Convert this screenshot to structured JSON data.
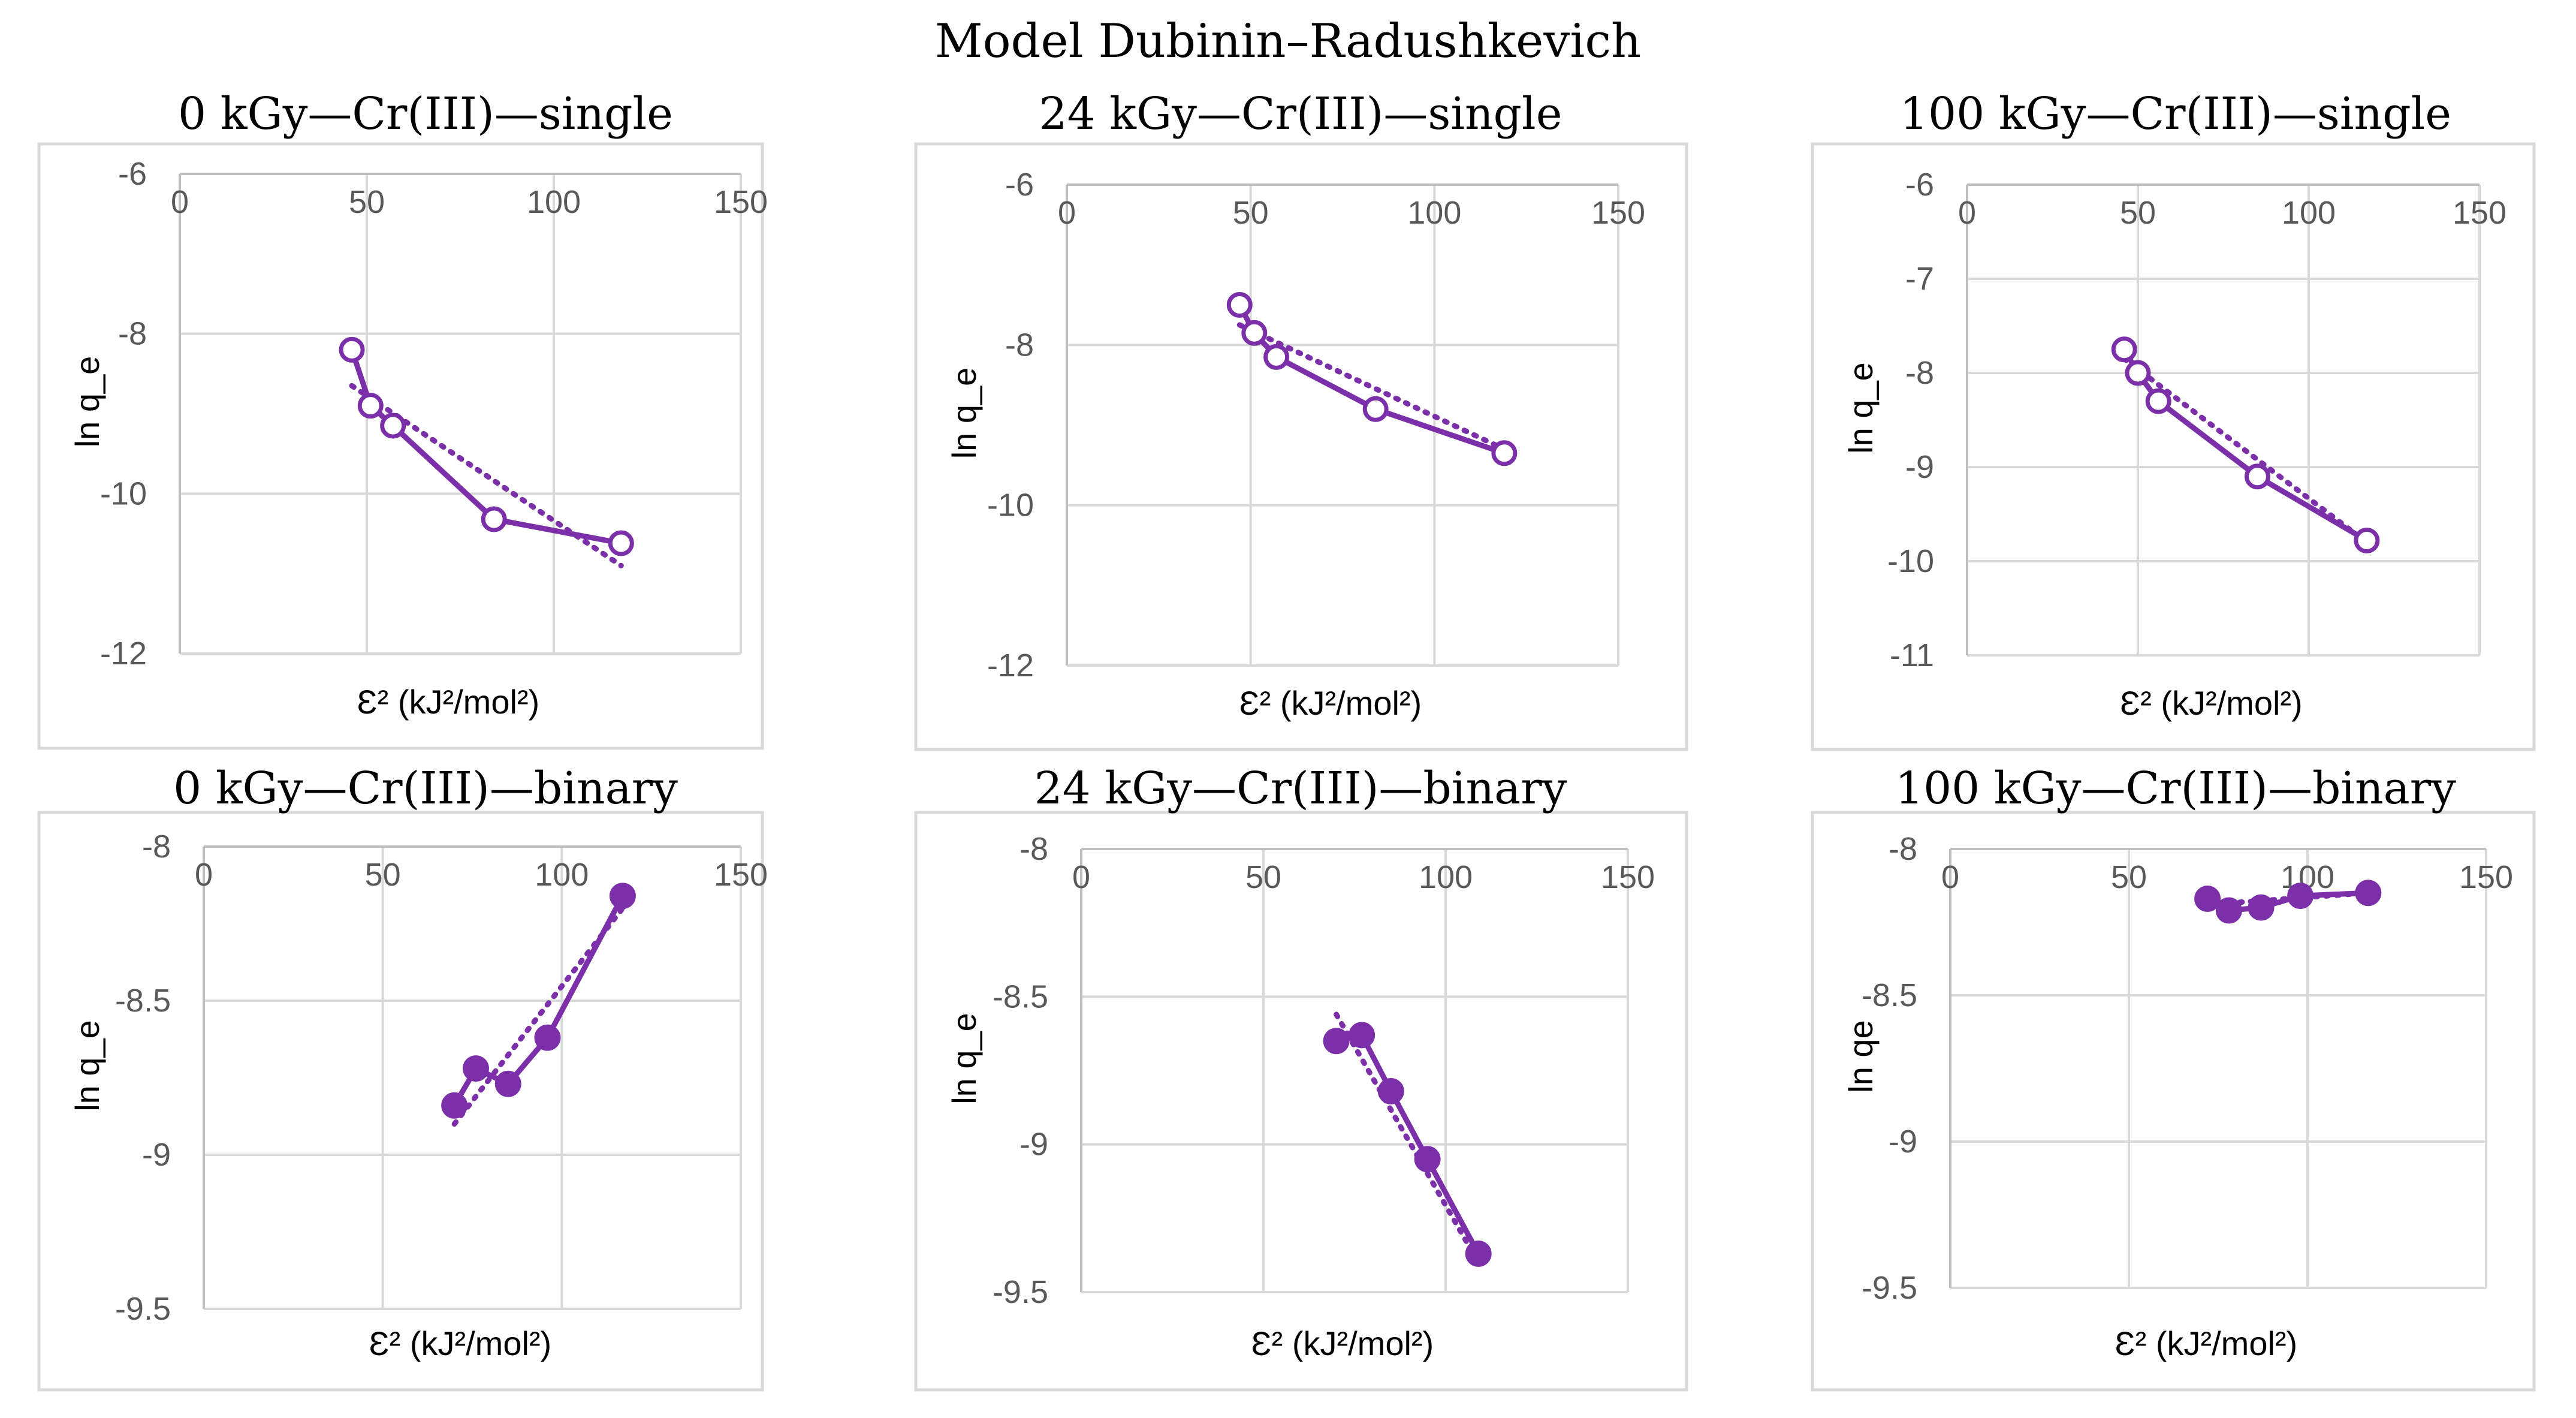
{
  "figure_title": "Model Dubinin–Radushkevich",
  "series_color": "#7b2fa8",
  "chart_data": [
    {
      "type": "scatter",
      "title": "0 kGy—Cr(III)—single",
      "xlabel": "Ɛ² (kJ²/mol²)",
      "ylabel": "ln q_e",
      "xlim": [
        0,
        150
      ],
      "ylim": [
        -12,
        -6
      ],
      "x_ticks": [
        0,
        50,
        100,
        150
      ],
      "y_ticks": [
        -6,
        -8,
        -10,
        -12
      ],
      "marker": "open-circle",
      "points": [
        [
          46,
          -8.2
        ],
        [
          51,
          -8.9
        ],
        [
          57,
          -9.15
        ],
        [
          84,
          -10.32
        ],
        [
          118,
          -10.62
        ]
      ],
      "trend": [
        [
          46,
          -8.65
        ],
        [
          118,
          -10.9
        ]
      ]
    },
    {
      "type": "scatter",
      "title": "24 kGy—Cr(III)—single",
      "xlabel": "Ɛ² (kJ²/mol²)",
      "ylabel": "ln q_e",
      "xlim": [
        0,
        150
      ],
      "ylim": [
        -12,
        -6
      ],
      "x_ticks": [
        0,
        50,
        100,
        150
      ],
      "y_ticks": [
        -6,
        -8,
        -10,
        -12
      ],
      "marker": "open-circle",
      "points": [
        [
          47,
          -7.5
        ],
        [
          51,
          -7.85
        ],
        [
          57,
          -8.15
        ],
        [
          84,
          -8.8
        ],
        [
          119,
          -9.35
        ]
      ],
      "trend": [
        [
          47,
          -7.75
        ],
        [
          119,
          -9.3
        ]
      ]
    },
    {
      "type": "scatter",
      "title": "100 kGy—Cr(III)—single",
      "xlabel": "Ɛ² (kJ²/mol²)",
      "ylabel": "ln q_e",
      "xlim": [
        0,
        150
      ],
      "ylim": [
        -11,
        -6
      ],
      "x_ticks": [
        0,
        50,
        100,
        150
      ],
      "y_ticks": [
        -6,
        -7,
        -8,
        -9,
        -10,
        -11
      ],
      "marker": "open-circle",
      "points": [
        [
          46,
          -7.75
        ],
        [
          50,
          -8.0
        ],
        [
          56,
          -8.3
        ],
        [
          85,
          -9.1
        ],
        [
          117,
          -9.78
        ]
      ],
      "trend": [
        [
          46,
          -7.85
        ],
        [
          117,
          -9.8
        ]
      ]
    },
    {
      "type": "scatter",
      "title": "0 kGy—Cr(III)—binary",
      "xlabel": "Ɛ² (kJ²/mol²)",
      "ylabel": "ln q_e",
      "xlim": [
        0,
        150
      ],
      "ylim": [
        -9.5,
        -8
      ],
      "x_ticks": [
        0,
        50,
        100,
        150
      ],
      "y_ticks": [
        -8,
        -8.5,
        -9,
        -9.5
      ],
      "marker": "filled-circle",
      "points": [
        [
          70,
          -8.84
        ],
        [
          76,
          -8.72
        ],
        [
          85,
          -8.77
        ],
        [
          96,
          -8.62
        ],
        [
          117,
          -8.16
        ]
      ],
      "trend": [
        [
          70,
          -8.9
        ],
        [
          117,
          -8.2
        ]
      ]
    },
    {
      "type": "scatter",
      "title": "24 kGy—Cr(III)—binary",
      "xlabel": "Ɛ² (kJ²/mol²)",
      "ylabel": "ln q_e",
      "xlim": [
        0,
        150
      ],
      "ylim": [
        -9.5,
        -8
      ],
      "x_ticks": [
        0,
        50,
        100,
        150
      ],
      "y_ticks": [
        -8,
        -8.5,
        -9,
        -9.5
      ],
      "marker": "filled-circle",
      "points": [
        [
          70,
          -8.65
        ],
        [
          77,
          -8.63
        ],
        [
          85,
          -8.82
        ],
        [
          95,
          -9.05
        ],
        [
          109,
          -9.37
        ]
      ],
      "trend": [
        [
          70,
          -8.56
        ],
        [
          109,
          -9.4
        ]
      ]
    },
    {
      "type": "scatter",
      "title": "100 kGy—Cr(III)—binary",
      "xlabel": "Ɛ² (kJ²/mol²)",
      "ylabel": "ln qe",
      "xlim": [
        0,
        150
      ],
      "ylim": [
        -9.5,
        -8
      ],
      "x_ticks": [
        0,
        50,
        100,
        150
      ],
      "y_ticks": [
        -8,
        -8.5,
        -9,
        -9.5
      ],
      "marker": "filled-circle",
      "points": [
        [
          72,
          -8.17
        ],
        [
          78,
          -8.21
        ],
        [
          87,
          -8.2
        ],
        [
          98,
          -8.16
        ],
        [
          117,
          -8.15
        ]
      ],
      "trend": [
        [
          72,
          -8.19
        ],
        [
          117,
          -8.15
        ]
      ]
    }
  ]
}
